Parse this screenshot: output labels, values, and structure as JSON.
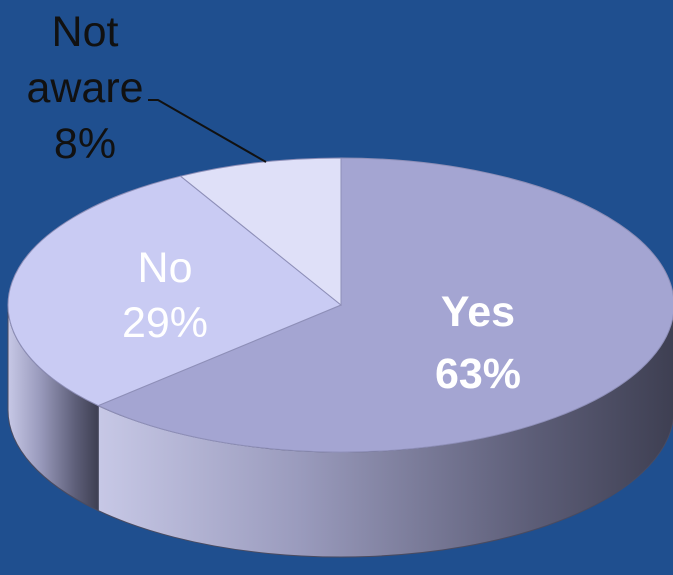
{
  "chart_data": {
    "type": "pie",
    "style": "3d",
    "slices": [
      {
        "label": "Yes",
        "value": 63,
        "value_label": "63%",
        "color": "#a4a5d2",
        "label_color": "#ffffff"
      },
      {
        "label": "No",
        "value": 29,
        "value_label": "29%",
        "color": "#c9cbf3",
        "label_color": "#ffffff"
      },
      {
        "label": "Not aware",
        "label_lines": [
          "Not",
          "aware"
        ],
        "value": 8,
        "value_label": "8%",
        "color": "#dfe0f8",
        "label_color": "#111111"
      }
    ],
    "background_color": "#1f4f8f"
  }
}
